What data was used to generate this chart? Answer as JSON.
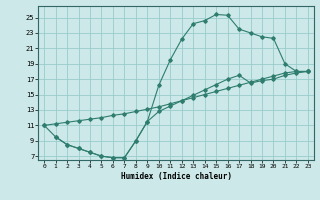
{
  "bg_color": "#cce8e8",
  "grid_color": "#99cccc",
  "line_color": "#2e7d6e",
  "xlabel": "Humidex (Indice chaleur)",
  "xlim": [
    -0.5,
    23.5
  ],
  "ylim": [
    6.5,
    26.5
  ],
  "xticks": [
    0,
    1,
    2,
    3,
    4,
    5,
    6,
    7,
    8,
    9,
    10,
    11,
    12,
    13,
    14,
    15,
    16,
    17,
    18,
    19,
    20,
    21,
    22,
    23
  ],
  "yticks": [
    7,
    9,
    11,
    13,
    15,
    17,
    19,
    21,
    23,
    25
  ],
  "line1_x": [
    0,
    1,
    2,
    3,
    4,
    5,
    6,
    7,
    8,
    9,
    10,
    11,
    12,
    13,
    14,
    15,
    16,
    17,
    18,
    19,
    20,
    21,
    22,
    23
  ],
  "line1_y": [
    11,
    9.5,
    8.5,
    8.0,
    7.5,
    7.0,
    6.8,
    6.8,
    9.0,
    11.5,
    16.2,
    19.5,
    22.2,
    24.2,
    24.6,
    25.4,
    25.3,
    23.5,
    23.0,
    22.5,
    22.3,
    19.0,
    18.0,
    18.0
  ],
  "line2_x": [
    0,
    1,
    2,
    3,
    4,
    5,
    6,
    7,
    8,
    9,
    10,
    11,
    12,
    13,
    14,
    15,
    16,
    17,
    18,
    19,
    20,
    21,
    22,
    23
  ],
  "line2_y": [
    11.0,
    11.2,
    11.4,
    11.6,
    11.8,
    12.0,
    12.3,
    12.5,
    12.8,
    13.1,
    13.4,
    13.8,
    14.2,
    14.6,
    15.0,
    15.4,
    15.8,
    16.2,
    16.6,
    17.0,
    17.4,
    17.8,
    18.0,
    18.0
  ],
  "line3_x": [
    1,
    2,
    3,
    4,
    5,
    6,
    7,
    8,
    9,
    10,
    11,
    12,
    13,
    14,
    15,
    16,
    17,
    18,
    19,
    20,
    21,
    22,
    23
  ],
  "line3_y": [
    9.5,
    8.5,
    8.0,
    7.5,
    7.0,
    6.8,
    6.8,
    9.0,
    11.5,
    12.8,
    13.5,
    14.2,
    14.9,
    15.6,
    16.3,
    17.0,
    17.5,
    16.5,
    16.8,
    17.0,
    17.5,
    17.8,
    18.0
  ]
}
